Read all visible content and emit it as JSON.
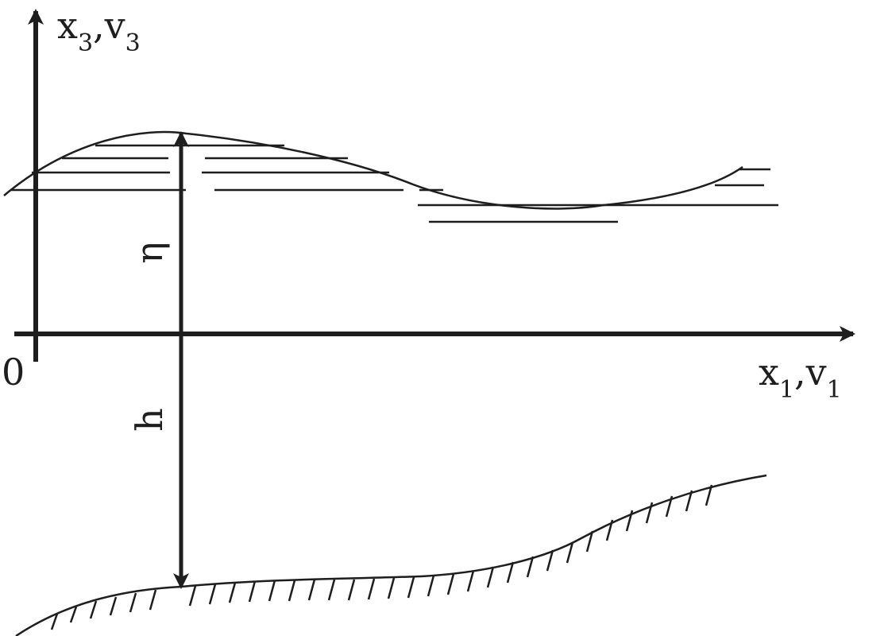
{
  "labels": {
    "vertical_axis": {
      "main1": "x",
      "sub1": "3",
      "sep": ",",
      "main2": "v",
      "sub2": "3"
    },
    "horizontal_axis": {
      "main1": "x",
      "sub1": "1",
      "sep": ",",
      "main2": "v",
      "sub2": "1"
    },
    "origin": "0",
    "eta": "η",
    "depth": "h"
  },
  "colors": {
    "ink": "#1e1e1e",
    "background": "#ffffff"
  }
}
